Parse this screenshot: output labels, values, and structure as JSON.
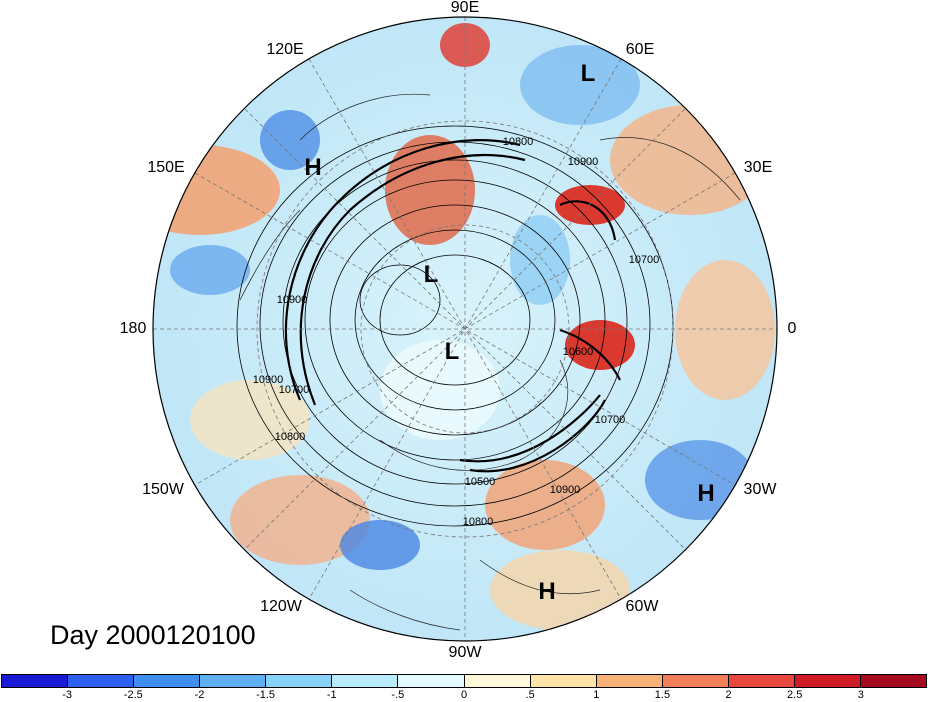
{
  "map": {
    "projection": "north-polar-stereographic",
    "longitude_labels": [
      "90E",
      "60E",
      "30E",
      "0",
      "30W",
      "60W",
      "90W",
      "120W",
      "150W",
      "180",
      "150E",
      "120E"
    ],
    "pressure_centers": [
      "L",
      "L",
      "L",
      "H",
      "H",
      "H"
    ],
    "contour_labels": [
      "10800",
      "10900",
      "10700",
      "10900",
      "10800",
      "10700",
      "10600",
      "10700",
      "10500",
      "10900",
      "10800",
      "10900"
    ],
    "title": "Day 2000120100"
  },
  "colorbar": {
    "ticks": [
      "-3",
      "-2.5",
      "-2",
      "-1.5",
      "-1",
      "-.5",
      "0",
      ".5",
      "1",
      "1.5",
      "2",
      "2.5",
      "3"
    ],
    "colors": [
      "#1a1ad4",
      "#2d5ff0",
      "#3f8ef0",
      "#5fb0f5",
      "#88d2f8",
      "#b8ecfb",
      "#e2fafd",
      "#fff8d8",
      "#fde3a8",
      "#f7b27a",
      "#f07e58",
      "#e9483e",
      "#cf1b26",
      "#a50a1e"
    ]
  }
}
